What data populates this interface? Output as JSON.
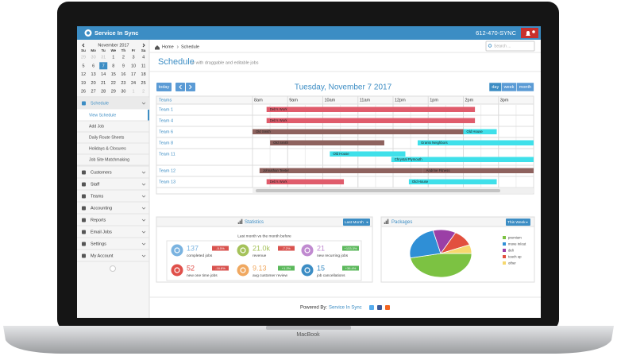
{
  "device": {
    "label": "MacBook"
  },
  "header": {
    "brand": "Service In Sync",
    "phone": "612-470-SYNC"
  },
  "calendar": {
    "month": "November 2017",
    "weekdays": [
      "Su",
      "Mo",
      "Tu",
      "We",
      "Th",
      "Fr",
      "Sa"
    ],
    "weeks": [
      [
        "29",
        "30",
        "31",
        "1",
        "2",
        "3",
        "4"
      ],
      [
        "5",
        "6",
        "7",
        "8",
        "9",
        "10",
        "11"
      ],
      [
        "12",
        "13",
        "14",
        "15",
        "16",
        "17",
        "18"
      ],
      [
        "19",
        "20",
        "21",
        "22",
        "23",
        "24",
        "25"
      ],
      [
        "26",
        "27",
        "28",
        "29",
        "30",
        "1",
        "2"
      ]
    ],
    "selected": "7"
  },
  "menu": [
    {
      "label": "Schedule",
      "active": true,
      "children": [
        "View Schedule",
        "Add Job",
        "Daily Route Sheets",
        "Holidays & Closures",
        "Job Site Matchmaking"
      ]
    },
    {
      "label": "Customers"
    },
    {
      "label": "Staff"
    },
    {
      "label": "Teams"
    },
    {
      "label": "Accounting"
    },
    {
      "label": "Reports"
    },
    {
      "label": "Email Jobs"
    },
    {
      "label": "Settings"
    },
    {
      "label": "My Account"
    }
  ],
  "breadcrumb": [
    "Home",
    "Schedule"
  ],
  "search_placeholder": "Search ...",
  "page": {
    "title": "Schedule",
    "subtitle": "» with draggable and editable jobs"
  },
  "schedule": {
    "today": "today",
    "date": "Tuesday, November 7 2017",
    "views": [
      "day",
      "week",
      "month"
    ],
    "active_view": "day",
    "column_title": "Teams",
    "xlim": [
      8,
      16
    ],
    "xticks": [
      {
        "value": 8,
        "label": "8am"
      },
      {
        "value": 9,
        "label": "9am"
      },
      {
        "value": 10,
        "label": "10am"
      },
      {
        "value": 11,
        "label": "11am"
      },
      {
        "value": 12,
        "label": "12pm"
      },
      {
        "value": 13,
        "label": "1pm"
      },
      {
        "value": 14,
        "label": "2pm"
      },
      {
        "value": 15,
        "label": "3pm"
      }
    ],
    "teams": [
      {
        "name": "Team 1",
        "events": [
          {
            "name": "Deb's Work",
            "start": 8.4,
            "end": 14.33,
            "color": "#e05c6c"
          }
        ]
      },
      {
        "name": "Team 4",
        "events": [
          {
            "name": "Deb's Work",
            "start": 8.4,
            "end": 14.33,
            "color": "#e05c6c"
          }
        ]
      },
      {
        "name": "Team 6",
        "events": [
          {
            "name": "Old Smith",
            "start": 8,
            "end": 14,
            "color": "#8e625e"
          },
          {
            "name": "Old House",
            "start": 14,
            "end": 14.95,
            "color": "#3fe0ea"
          }
        ]
      },
      {
        "name": "Team 8",
        "events": [
          {
            "name": "Old Smith",
            "start": 8.5,
            "end": 11.75,
            "color": "#8e625e"
          },
          {
            "name": "Grants Neighbors",
            "start": 12.7,
            "end": 16,
            "color": "#3fe0ea"
          }
        ]
      },
      {
        "name": "Team 11",
        "events": [
          {
            "name": "Old House",
            "start": 10.2,
            "end": 12.35,
            "color": "#3fe0ea"
          },
          {
            "name": "Chrystal Plymouth",
            "start": 11.95,
            "end": 16,
            "color": "#3fe0ea"
          }
        ]
      },
      {
        "name": "Team 12",
        "events": [
          {
            "name": "Johnathan Teeter",
            "start": 8.2,
            "end": 12.85,
            "color": "#8e625e"
          },
          {
            "name": "Andrine Fitness",
            "start": 12.85,
            "end": 16,
            "color": "#8e625e"
          }
        ]
      },
      {
        "name": "Team 13",
        "events": [
          {
            "name": "Deb's Work",
            "start": 8.4,
            "end": 10.6,
            "color": "#e05c6c"
          },
          {
            "name": "Old House",
            "start": 12.45,
            "end": 14.95,
            "color": "#3fe0ea"
          }
        ]
      }
    ]
  },
  "statistics": {
    "title": "Statistics",
    "period": "Last Month",
    "caption": "Last month vs the month before",
    "items": [
      {
        "value": "137",
        "label": "completed jobs",
        "change": "-5.5%",
        "color": "#7ab3e0",
        "change_color": "#d9534f"
      },
      {
        "value": "21.0k",
        "label": "revenue",
        "change": "-7.2%",
        "color": "#a5c25a",
        "change_color": "#d9534f"
      },
      {
        "value": "21",
        "label": "new recurring jobs",
        "change": "+133.3%",
        "color": "#c08ad0",
        "change_color": "#5cb85c"
      },
      {
        "value": "52",
        "label": "new one time jobs",
        "change": "-16.8%",
        "color": "#e0504a",
        "change_color": "#d9534f"
      },
      {
        "value": "9.13",
        "label": "avg customer review",
        "change": "+1.2%",
        "color": "#f0a860",
        "change_color": "#5cb85c"
      },
      {
        "value": "15",
        "label": "job cancellations",
        "change": "+36.4%",
        "color": "#3c8dc4",
        "change_color": "#5cb85c"
      }
    ]
  },
  "chart_data": {
    "type": "pie",
    "title": "Packages",
    "period": "This Week",
    "categories": [
      "premium",
      "move in/out",
      "deli",
      "touch up",
      "other"
    ],
    "values": [
      47,
      24,
      12,
      11,
      6
    ],
    "colors": [
      "#7cc242",
      "#2f8fd6",
      "#9b3fa6",
      "#e2503e",
      "#f6d86e"
    ]
  },
  "footer": {
    "prefix": "Powered By:",
    "brand": "Service In Sync"
  }
}
